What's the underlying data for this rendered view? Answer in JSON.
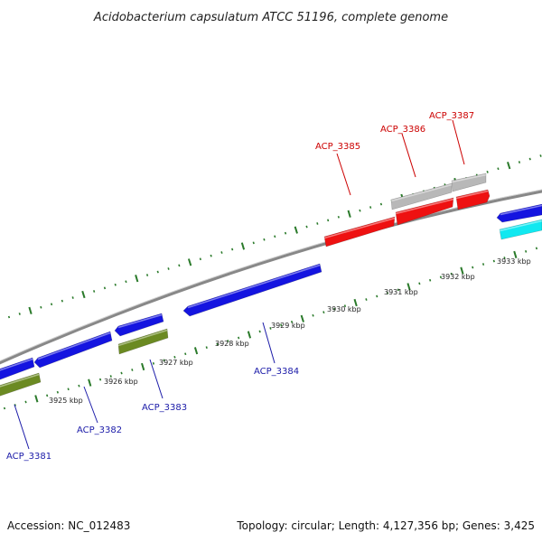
{
  "title": "Acidobacterium capsulatum ATCC 51196, complete genome",
  "footer": {
    "accession": "Accession: NC_012483",
    "summary": "Topology: circular; Length: 4,127,356 bp; Genes: 3,425"
  },
  "ticks": [
    {
      "label": "3925 kbp"
    },
    {
      "label": "3926 kbp"
    },
    {
      "label": "3927 kbp"
    },
    {
      "label": "3928 kbp"
    },
    {
      "label": "3929 kbp"
    },
    {
      "label": "3930 kbp"
    },
    {
      "label": "3931 kbp"
    },
    {
      "label": "3932 kbp"
    },
    {
      "label": "3933 kbp"
    }
  ],
  "gene_labels": [
    {
      "text": "ACP_3385",
      "strand": "forward"
    },
    {
      "text": "ACP_3386",
      "strand": "forward"
    },
    {
      "text": "ACP_3387",
      "strand": "forward"
    },
    {
      "text": "ACP_3381",
      "strand": "reverse"
    },
    {
      "text": "ACP_3382",
      "strand": "reverse"
    },
    {
      "text": "ACP_3383",
      "strand": "reverse"
    },
    {
      "text": "ACP_3384",
      "strand": "reverse"
    }
  ],
  "colors": {
    "red": "#ee1111",
    "blue": "#1414e0",
    "gray": "#b8b8b8",
    "cyan": "#11e8f0",
    "olive": "#6b8a22",
    "backbone": "#888888",
    "tick": "#2a7a2a",
    "label_red": "#cc0000",
    "label_blue": "#1a1aa8"
  }
}
